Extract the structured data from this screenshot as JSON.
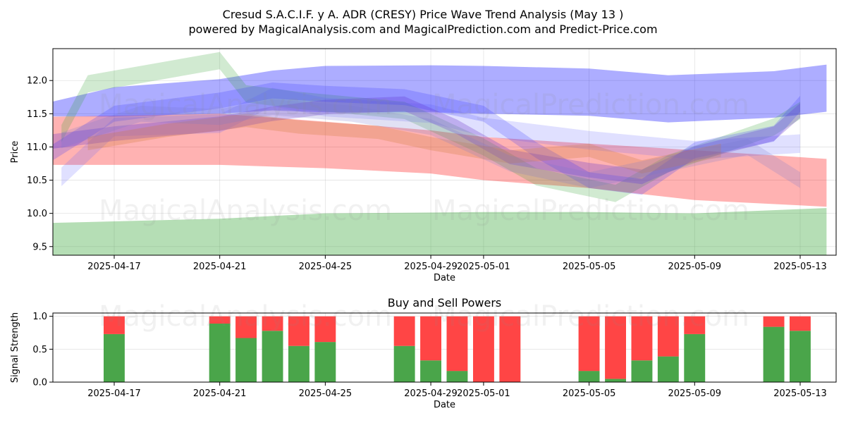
{
  "title": {
    "line1": "Cresud S.A.C.I.F. y A. ADR (CRESY) Price Wave Trend Analysis (May 13 )",
    "line2": "powered by MagicalAnalysis.com and MagicalPrediction.com and Predict-Price.com"
  },
  "watermarks": [
    "MagicalAnalysis.com",
    "MagicalPrediction.com"
  ],
  "chart_data": [
    {
      "type": "area",
      "title": "",
      "xlabel": "Date",
      "ylabel": "Price",
      "ylim": [
        9.37,
        12.48
      ],
      "grid": true,
      "date_range": [
        "2025-04-14",
        "2025-05-14"
      ],
      "x_ticks": [
        "2025-04-17",
        "2025-04-21",
        "2025-04-25",
        "2025-04-29",
        "2025-05-01",
        "2025-05-05",
        "2025-05-09",
        "2025-05-13"
      ],
      "y_ticks": [
        "9.5",
        "10.0",
        "10.5",
        "11.0",
        "11.5",
        "12.0"
      ],
      "series": [
        {
          "name": "green-floor-band",
          "color": "#2ca02c",
          "alpha": 0.35,
          "dates": [
            "2025-04-14",
            "2025-04-21",
            "2025-04-25",
            "2025-05-01",
            "2025-05-05",
            "2025-05-09",
            "2025-05-14"
          ],
          "upper": [
            9.85,
            9.92,
            10.0,
            10.02,
            10.02,
            10.0,
            10.08
          ],
          "lower": [
            9.3,
            9.3,
            9.3,
            9.3,
            9.3,
            9.3,
            9.3
          ]
        },
        {
          "name": "red-band",
          "color": "#ff0000",
          "alpha": 0.3,
          "dates": [
            "2025-04-14",
            "2025-04-21",
            "2025-04-25",
            "2025-04-29",
            "2025-05-01",
            "2025-05-05",
            "2025-05-09",
            "2025-05-14"
          ],
          "upper": [
            11.45,
            11.5,
            11.38,
            11.25,
            11.15,
            11.05,
            10.95,
            10.82
          ],
          "lower": [
            10.73,
            10.73,
            10.68,
            10.6,
            10.5,
            10.38,
            10.2,
            10.1
          ]
        },
        {
          "name": "blue-upper-band",
          "color": "#0000ff",
          "alpha": 0.32,
          "dates": [
            "2025-04-14",
            "2025-04-17",
            "2025-04-21",
            "2025-04-23",
            "2025-04-25",
            "2025-04-29",
            "2025-05-01",
            "2025-05-05",
            "2025-05-08",
            "2025-05-12",
            "2025-05-14"
          ],
          "upper": [
            11.62,
            11.9,
            12.02,
            12.15,
            12.22,
            12.23,
            12.22,
            12.18,
            12.08,
            12.14,
            12.24
          ],
          "lower": [
            11.46,
            11.46,
            11.5,
            11.55,
            11.52,
            11.52,
            11.5,
            11.47,
            11.37,
            11.44,
            11.53
          ]
        },
        {
          "name": "green-wave",
          "color": "#2ca02c",
          "alpha": 0.22,
          "dates": [
            "2025-04-15",
            "2025-04-16",
            "2025-04-21",
            "2025-04-22",
            "2025-04-24",
            "2025-04-28",
            "2025-05-01",
            "2025-05-03",
            "2025-05-06",
            "2025-05-08",
            "2025-05-12",
            "2025-05-13"
          ],
          "center": [
            11.2,
            11.95,
            12.3,
            11.8,
            11.7,
            11.55,
            11.0,
            10.55,
            10.3,
            10.75,
            11.3,
            11.55
          ],
          "half_width": 0.13
        },
        {
          "name": "lightblue-wave",
          "color": "#6666ff",
          "alpha": 0.2,
          "dates": [
            "2025-04-15",
            "2025-04-17",
            "2025-04-21",
            "2025-04-23",
            "2025-04-25",
            "2025-04-29",
            "2025-05-01",
            "2025-05-05",
            "2025-05-09",
            "2025-05-13"
          ],
          "center": [
            10.55,
            11.3,
            11.35,
            11.75,
            11.6,
            11.5,
            11.3,
            11.1,
            10.95,
            11.05
          ],
          "half_width": 0.14
        },
        {
          "name": "purple-wave",
          "color": "#7744cc",
          "alpha": 0.32,
          "dates": [
            "2025-04-14",
            "2025-04-17",
            "2025-04-21",
            "2025-04-23",
            "2025-04-25",
            "2025-04-28",
            "2025-04-30",
            "2025-05-02",
            "2025-05-05",
            "2025-05-07",
            "2025-05-09",
            "2025-05-12",
            "2025-05-13"
          ],
          "center": [
            11.05,
            11.2,
            11.35,
            11.5,
            11.6,
            11.65,
            11.3,
            10.85,
            10.65,
            10.55,
            10.9,
            11.2,
            11.55
          ],
          "half_width": 0.11
        },
        {
          "name": "blue-mid-wave",
          "color": "#3333ff",
          "alpha": 0.22,
          "dates": [
            "2025-04-14",
            "2025-04-17",
            "2025-04-21",
            "2025-04-23",
            "2025-04-25",
            "2025-04-28",
            "2025-05-01",
            "2025-05-03",
            "2025-05-05",
            "2025-05-07",
            "2025-05-09",
            "2025-05-12",
            "2025-05-13"
          ],
          "center": [
            10.75,
            11.5,
            11.7,
            11.85,
            11.8,
            11.75,
            11.5,
            10.95,
            10.5,
            10.4,
            10.95,
            11.2,
            11.65
          ],
          "half_width": 0.12
        },
        {
          "name": "orange-wave",
          "color": "#cc7733",
          "alpha": 0.26,
          "dates": [
            "2025-04-16",
            "2025-04-19",
            "2025-04-22",
            "2025-04-24",
            "2025-04-27",
            "2025-04-29",
            "2025-05-02",
            "2025-05-05",
            "2025-05-07",
            "2025-05-10"
          ],
          "center": [
            11.05,
            11.25,
            11.4,
            11.3,
            11.22,
            11.05,
            10.85,
            10.95,
            10.7,
            10.95
          ],
          "half_width": 0.1
        },
        {
          "name": "slate-wave",
          "color": "#7777cc",
          "alpha": 0.22,
          "dates": [
            "2025-04-15",
            "2025-04-18",
            "2025-04-21",
            "2025-04-23",
            "2025-04-26",
            "2025-04-29",
            "2025-05-02",
            "2025-05-05",
            "2025-05-08",
            "2025-05-11",
            "2025-05-13"
          ],
          "center": [
            11.1,
            11.5,
            11.45,
            11.6,
            11.5,
            11.3,
            10.75,
            10.5,
            10.75,
            11.0,
            10.5
          ],
          "half_width": 0.12
        }
      ]
    },
    {
      "type": "bar",
      "title": "Buy and Sell Powers",
      "xlabel": "Date",
      "ylabel": "Signal Strength",
      "ylim": [
        0,
        1.05
      ],
      "grid": true,
      "x_ticks": [
        "2025-04-17",
        "2025-04-21",
        "2025-04-25",
        "2025-04-29",
        "2025-05-01",
        "2025-05-05",
        "2025-05-09",
        "2025-05-13"
      ],
      "y_ticks": [
        "0.0",
        "0.5",
        "1.0"
      ],
      "categories": [
        "2025-04-17",
        "2025-04-21",
        "2025-04-22",
        "2025-04-23",
        "2025-04-24",
        "2025-04-25",
        "2025-04-28",
        "2025-04-29",
        "2025-04-30",
        "2025-05-01",
        "2025-05-02",
        "2025-05-05",
        "2025-05-06",
        "2025-05-07",
        "2025-05-08",
        "2025-05-09",
        "2025-05-12",
        "2025-05-13"
      ],
      "series": [
        {
          "name": "Buy",
          "color": "#4aa54a",
          "values": [
            0.73,
            0.89,
            0.67,
            0.78,
            0.55,
            0.61,
            0.55,
            0.33,
            0.17,
            0.0,
            0.0,
            0.17,
            0.05,
            0.33,
            0.39,
            0.73,
            0.84,
            0.78
          ]
        },
        {
          "name": "Sell",
          "color": "#ff4545",
          "values": [
            0.27,
            0.11,
            0.33,
            0.22,
            0.45,
            0.39,
            0.45,
            0.67,
            0.83,
            1.0,
            1.0,
            0.83,
            0.95,
            0.67,
            0.61,
            0.27,
            0.16,
            0.22
          ]
        }
      ]
    }
  ]
}
